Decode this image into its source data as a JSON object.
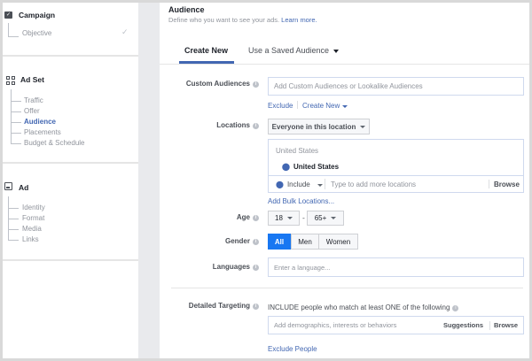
{
  "sidebar": {
    "campaign": {
      "title": "Campaign",
      "items": [
        {
          "label": "Objective",
          "done": true
        }
      ]
    },
    "adset": {
      "title": "Ad Set",
      "items": [
        {
          "label": "Traffic"
        },
        {
          "label": "Offer"
        },
        {
          "label": "Audience",
          "active": true
        },
        {
          "label": "Placements"
        },
        {
          "label": "Budget & Schedule"
        }
      ]
    },
    "ad": {
      "title": "Ad",
      "items": [
        {
          "label": "Identity"
        },
        {
          "label": "Format"
        },
        {
          "label": "Media"
        },
        {
          "label": "Links"
        }
      ]
    }
  },
  "main": {
    "title": "Audience",
    "description": "Define who you want to see your ads.",
    "learn_more": "Learn more.",
    "tabs": [
      {
        "label": "Create New",
        "active": true
      },
      {
        "label": "Use a Saved Audience"
      }
    ],
    "custom_audiences": {
      "label": "Custom Audiences",
      "placeholder": "Add Custom Audiences or Lookalike Audiences",
      "exclude": "Exclude",
      "create_new": "Create New"
    },
    "locations": {
      "label": "Locations",
      "mode": "Everyone in this location",
      "group": "United States",
      "selected": "United States",
      "include": "Include",
      "placeholder": "Type to add more locations",
      "browse": "Browse",
      "bulk": "Add Bulk Locations..."
    },
    "age": {
      "label": "Age",
      "min": "18",
      "sep": "-",
      "max": "65+"
    },
    "gender": {
      "label": "Gender",
      "options": [
        "All",
        "Men",
        "Women"
      ],
      "selected": "All"
    },
    "languages": {
      "label": "Languages",
      "placeholder": "Enter a language..."
    },
    "detailed": {
      "label": "Detailed Targeting",
      "include_text": "INCLUDE people who match at least ONE of the following",
      "placeholder": "Add demographics, interests or behaviors",
      "suggestions": "Suggestions",
      "browse": "Browse",
      "exclude": "Exclude People"
    }
  },
  "colors": {
    "accent": "#4267b2",
    "active_button": "#1877f2"
  }
}
